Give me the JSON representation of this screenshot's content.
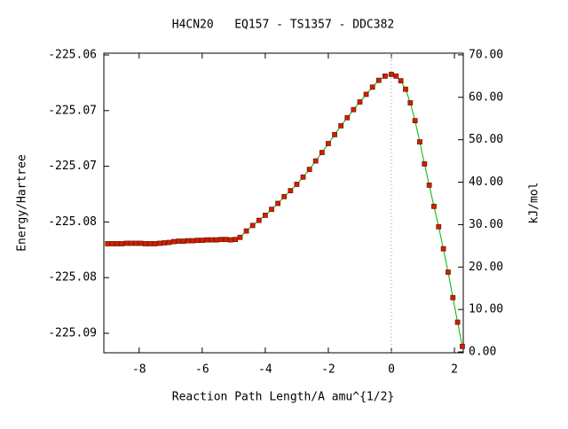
{
  "chart_data": {
    "type": "line",
    "title": "H4CN20   EQ157 - TS1357 - DDC382",
    "xlabel": "Reaction Path Length/A amu^{1/2}",
    "ylabel": "Energy/Hartree",
    "y2label": "kJ/mol",
    "xlim": [
      -9.12,
      2.28
    ],
    "xticks": [
      -8,
      -6,
      -4,
      -2,
      0,
      2
    ],
    "ylim": [
      -225.08675,
      -225.05984
    ],
    "yticks": [
      {
        "value": -225.085,
        "label": "-225.09"
      },
      {
        "value": -225.08,
        "label": "-225.08"
      },
      {
        "value": -225.075,
        "label": "-225.08"
      },
      {
        "value": -225.07,
        "label": "-225.07"
      },
      {
        "value": -225.065,
        "label": "-225.07"
      },
      {
        "value": -225.06,
        "label": "-225.06"
      }
    ],
    "y2lim": [
      -0.2,
      70.4
    ],
    "y2ticks": [
      {
        "value": 0,
        "label": "0.00"
      },
      {
        "value": 10,
        "label": "10.00"
      },
      {
        "value": 20,
        "label": "20.00"
      },
      {
        "value": 30,
        "label": "30.00"
      },
      {
        "value": 40,
        "label": "40.00"
      },
      {
        "value": 50,
        "label": "50.00"
      },
      {
        "value": 60,
        "label": "60.00"
      },
      {
        "value": 70,
        "label": "70.00"
      }
    ],
    "vlines": [
      0
    ],
    "series": [
      {
        "axis": "y2",
        "color": "#00b000",
        "marker_color": "#d02000",
        "x": [
          -9.0,
          -8.85,
          -8.7,
          -8.55,
          -8.4,
          -8.25,
          -8.1,
          -7.95,
          -7.8,
          -7.65,
          -7.5,
          -7.35,
          -7.2,
          -7.05,
          -6.9,
          -6.75,
          -6.6,
          -6.45,
          -6.3,
          -6.15,
          -6.0,
          -5.85,
          -5.7,
          -5.55,
          -5.4,
          -5.25,
          -5.1,
          -4.95,
          -4.8,
          -4.6,
          -4.4,
          -4.2,
          -4.0,
          -3.8,
          -3.6,
          -3.4,
          -3.2,
          -3.0,
          -2.8,
          -2.6,
          -2.4,
          -2.2,
          -2.0,
          -1.8,
          -1.6,
          -1.4,
          -1.2,
          -1.0,
          -0.8,
          -0.6,
          -0.4,
          -0.2,
          0.0,
          0.15,
          0.3,
          0.45,
          0.6,
          0.75,
          0.9,
          1.05,
          1.2,
          1.35,
          1.5,
          1.65,
          1.8,
          1.95,
          2.1,
          2.25
        ],
        "values": [
          25.5,
          25.5,
          25.5,
          25.5,
          25.6,
          25.6,
          25.6,
          25.6,
          25.5,
          25.5,
          25.5,
          25.6,
          25.7,
          25.8,
          26.0,
          26.1,
          26.1,
          26.2,
          26.2,
          26.3,
          26.3,
          26.4,
          26.4,
          26.4,
          26.5,
          26.5,
          26.4,
          26.5,
          27.0,
          28.5,
          29.8,
          31.0,
          32.2,
          33.6,
          35.0,
          36.6,
          38.0,
          39.5,
          41.2,
          43.0,
          45.0,
          47.0,
          49.1,
          51.2,
          53.3,
          55.2,
          57.1,
          58.9,
          60.7,
          62.4,
          64.0,
          65.0,
          65.4,
          65.0,
          63.9,
          61.9,
          58.7,
          54.5,
          49.5,
          44.3,
          39.3,
          34.3,
          29.5,
          24.3,
          18.8,
          12.8,
          7.0,
          1.3
        ]
      }
    ]
  }
}
